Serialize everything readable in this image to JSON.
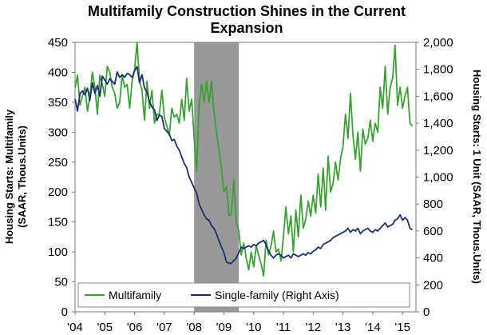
{
  "chart_data": {
    "type": "line",
    "title_lines": [
      "Multifamily Construction Shines in the Current",
      "Expansion"
    ],
    "ylabel_left_lines": [
      "Housing Starts: Multifamily",
      "(SAAR, Thous.Units)"
    ],
    "ylabel_right": "Housing Starts: 1 Unit (SAAR, Thous.Units)",
    "xticks": [
      "'04",
      "'05",
      "'06",
      "'07",
      "'08",
      "'09",
      "'10",
      "'11",
      "'12",
      "'13",
      "'14",
      "'15"
    ],
    "ylim_left": [
      0,
      450
    ],
    "yticks_left": [
      "0",
      "50",
      "100",
      "150",
      "200",
      "250",
      "300",
      "350",
      "400",
      "450"
    ],
    "ylim_right": [
      0,
      2000
    ],
    "yticks_right": [
      "0",
      "200",
      "400",
      "600",
      "800",
      "1,000",
      "1,200",
      "1,400",
      "1,600",
      "1,800",
      "2,000"
    ],
    "recession": {
      "start": 2008.0,
      "end": 2009.5
    },
    "legend_position": "bottom",
    "series": [
      {
        "name": "Multifamily",
        "axis": "left",
        "color": "#3aa035",
        "points": [
          [
            2004.0,
            375
          ],
          [
            2004.083,
            395
          ],
          [
            2004.167,
            345
          ],
          [
            2004.25,
            360
          ],
          [
            2004.333,
            375
          ],
          [
            2004.417,
            335
          ],
          [
            2004.5,
            360
          ],
          [
            2004.583,
            400
          ],
          [
            2004.667,
            375
          ],
          [
            2004.75,
            330
          ],
          [
            2004.833,
            395
          ],
          [
            2004.917,
            380
          ],
          [
            2005.0,
            360
          ],
          [
            2005.083,
            410
          ],
          [
            2005.167,
            400
          ],
          [
            2005.25,
            375
          ],
          [
            2005.333,
            365
          ],
          [
            2005.417,
            340
          ],
          [
            2005.5,
            350
          ],
          [
            2005.583,
            395
          ],
          [
            2005.667,
            375
          ],
          [
            2005.75,
            380
          ],
          [
            2005.833,
            340
          ],
          [
            2005.917,
            385
          ],
          [
            2006.0,
            405
          ],
          [
            2006.083,
            450
          ],
          [
            2006.167,
            385
          ],
          [
            2006.25,
            370
          ],
          [
            2006.333,
            320
          ],
          [
            2006.417,
            385
          ],
          [
            2006.5,
            340
          ],
          [
            2006.583,
            370
          ],
          [
            2006.667,
            315
          ],
          [
            2006.75,
            330
          ],
          [
            2006.833,
            330
          ],
          [
            2006.917,
            370
          ],
          [
            2007.0,
            325
          ],
          [
            2007.083,
            310
          ],
          [
            2007.167,
            295
          ],
          [
            2007.25,
            340
          ],
          [
            2007.333,
            325
          ],
          [
            2007.417,
            330
          ],
          [
            2007.5,
            315
          ],
          [
            2007.583,
            355
          ],
          [
            2007.667,
            320
          ],
          [
            2007.75,
            390
          ],
          [
            2007.833,
            335
          ],
          [
            2007.917,
            355
          ],
          [
            2008.0,
            290
          ],
          [
            2008.083,
            235
          ],
          [
            2008.167,
            345
          ],
          [
            2008.25,
            380
          ],
          [
            2008.333,
            350
          ],
          [
            2008.417,
            385
          ],
          [
            2008.5,
            350
          ],
          [
            2008.583,
            385
          ],
          [
            2008.667,
            335
          ],
          [
            2008.75,
            300
          ],
          [
            2008.833,
            270
          ],
          [
            2008.917,
            240
          ],
          [
            2009.0,
            200
          ],
          [
            2009.083,
            210
          ],
          [
            2009.167,
            160
          ],
          [
            2009.25,
            165
          ],
          [
            2009.333,
            220
          ],
          [
            2009.417,
            150
          ],
          [
            2009.5,
            135
          ],
          [
            2009.583,
            95
          ],
          [
            2009.667,
            115
          ],
          [
            2009.75,
            90
          ],
          [
            2009.833,
            70
          ],
          [
            2009.917,
            100
          ],
          [
            2010.0,
            75
          ],
          [
            2010.083,
            110
          ],
          [
            2010.167,
            95
          ],
          [
            2010.25,
            80
          ],
          [
            2010.333,
            60
          ],
          [
            2010.417,
            120
          ],
          [
            2010.5,
            95
          ],
          [
            2010.583,
            110
          ],
          [
            2010.667,
            135
          ],
          [
            2010.75,
            100
          ],
          [
            2010.833,
            105
          ],
          [
            2010.917,
            85
          ],
          [
            2011.0,
            125
          ],
          [
            2011.083,
            175
          ],
          [
            2011.167,
            130
          ],
          [
            2011.25,
            160
          ],
          [
            2011.333,
            100
          ],
          [
            2011.417,
            170
          ],
          [
            2011.5,
            125
          ],
          [
            2011.583,
            195
          ],
          [
            2011.667,
            140
          ],
          [
            2011.75,
            155
          ],
          [
            2011.833,
            185
          ],
          [
            2011.917,
            160
          ],
          [
            2012.0,
            195
          ],
          [
            2012.083,
            165
          ],
          [
            2012.167,
            230
          ],
          [
            2012.25,
            175
          ],
          [
            2012.333,
            240
          ],
          [
            2012.417,
            170
          ],
          [
            2012.5,
            260
          ],
          [
            2012.583,
            200
          ],
          [
            2012.667,
            215
          ],
          [
            2012.75,
            250
          ],
          [
            2012.833,
            220
          ],
          [
            2012.917,
            255
          ],
          [
            2013.0,
            275
          ],
          [
            2013.083,
            330
          ],
          [
            2013.167,
            290
          ],
          [
            2013.25,
            365
          ],
          [
            2013.333,
            295
          ],
          [
            2013.417,
            255
          ],
          [
            2013.5,
            300
          ],
          [
            2013.583,
            235
          ],
          [
            2013.667,
            305
          ],
          [
            2013.75,
            280
          ],
          [
            2013.833,
            290
          ],
          [
            2013.917,
            320
          ],
          [
            2014.0,
            285
          ],
          [
            2014.083,
            315
          ],
          [
            2014.167,
            300
          ],
          [
            2014.25,
            375
          ],
          [
            2014.333,
            340
          ],
          [
            2014.417,
            410
          ],
          [
            2014.5,
            330
          ],
          [
            2014.583,
            375
          ],
          [
            2014.667,
            390
          ],
          [
            2014.75,
            445
          ],
          [
            2014.833,
            345
          ],
          [
            2014.917,
            375
          ],
          [
            2015.0,
            340
          ],
          [
            2015.083,
            360
          ],
          [
            2015.167,
            375
          ],
          [
            2015.25,
            315
          ],
          [
            2015.333,
            310
          ]
        ]
      },
      {
        "name": "Single-family (Right Axis)",
        "axis": "right",
        "color": "#1c2f6b",
        "points": [
          [
            2004.0,
            1580
          ],
          [
            2004.083,
            1490
          ],
          [
            2004.167,
            1620
          ],
          [
            2004.25,
            1640
          ],
          [
            2004.333,
            1610
          ],
          [
            2004.417,
            1660
          ],
          [
            2004.5,
            1570
          ],
          [
            2004.583,
            1700
          ],
          [
            2004.667,
            1620
          ],
          [
            2004.75,
            1680
          ],
          [
            2004.833,
            1600
          ],
          [
            2004.917,
            1750
          ],
          [
            2005.0,
            1720
          ],
          [
            2005.083,
            1690
          ],
          [
            2005.167,
            1730
          ],
          [
            2005.25,
            1710
          ],
          [
            2005.333,
            1690
          ],
          [
            2005.417,
            1780
          ],
          [
            2005.5,
            1740
          ],
          [
            2005.583,
            1760
          ],
          [
            2005.667,
            1740
          ],
          [
            2005.75,
            1770
          ],
          [
            2005.833,
            1760
          ],
          [
            2005.917,
            1740
          ],
          [
            2006.0,
            1790
          ],
          [
            2006.083,
            1820
          ],
          [
            2006.167,
            1700
          ],
          [
            2006.25,
            1760
          ],
          [
            2006.333,
            1660
          ],
          [
            2006.417,
            1630
          ],
          [
            2006.5,
            1560
          ],
          [
            2006.583,
            1520
          ],
          [
            2006.667,
            1500
          ],
          [
            2006.75,
            1420
          ],
          [
            2006.833,
            1460
          ],
          [
            2006.917,
            1450
          ],
          [
            2007.0,
            1360
          ],
          [
            2007.083,
            1340
          ],
          [
            2007.167,
            1320
          ],
          [
            2007.25,
            1270
          ],
          [
            2007.333,
            1280
          ],
          [
            2007.417,
            1230
          ],
          [
            2007.5,
            1200
          ],
          [
            2007.583,
            1150
          ],
          [
            2007.667,
            1100
          ],
          [
            2007.75,
            1070
          ],
          [
            2007.833,
            1000
          ],
          [
            2007.917,
            960
          ],
          [
            2008.0,
            920
          ],
          [
            2008.083,
            880
          ],
          [
            2008.167,
            800
          ],
          [
            2008.25,
            760
          ],
          [
            2008.333,
            720
          ],
          [
            2008.417,
            690
          ],
          [
            2008.5,
            680
          ],
          [
            2008.583,
            640
          ],
          [
            2008.667,
            620
          ],
          [
            2008.75,
            580
          ],
          [
            2008.833,
            530
          ],
          [
            2008.917,
            480
          ],
          [
            2009.0,
            440
          ],
          [
            2009.083,
            370
          ],
          [
            2009.167,
            360
          ],
          [
            2009.25,
            360
          ],
          [
            2009.333,
            380
          ],
          [
            2009.417,
            400
          ],
          [
            2009.5,
            440
          ],
          [
            2009.583,
            480
          ],
          [
            2009.667,
            470
          ],
          [
            2009.75,
            480
          ],
          [
            2009.833,
            490
          ],
          [
            2009.917,
            480
          ],
          [
            2010.0,
            500
          ],
          [
            2010.083,
            490
          ],
          [
            2010.167,
            510
          ],
          [
            2010.25,
            520
          ],
          [
            2010.333,
            530
          ],
          [
            2010.417,
            500
          ],
          [
            2010.5,
            450
          ],
          [
            2010.583,
            420
          ],
          [
            2010.667,
            400
          ],
          [
            2010.75,
            420
          ],
          [
            2010.833,
            430
          ],
          [
            2010.917,
            420
          ],
          [
            2011.0,
            400
          ],
          [
            2011.083,
            410
          ],
          [
            2011.167,
            420
          ],
          [
            2011.25,
            400
          ],
          [
            2011.333,
            430
          ],
          [
            2011.417,
            420
          ],
          [
            2011.5,
            410
          ],
          [
            2011.583,
            420
          ],
          [
            2011.667,
            430
          ],
          [
            2011.75,
            420
          ],
          [
            2011.833,
            440
          ],
          [
            2011.917,
            430
          ],
          [
            2012.0,
            450
          ],
          [
            2012.083,
            460
          ],
          [
            2012.167,
            480
          ],
          [
            2012.25,
            470
          ],
          [
            2012.333,
            500
          ],
          [
            2012.417,
            510
          ],
          [
            2012.5,
            520
          ],
          [
            2012.583,
            530
          ],
          [
            2012.667,
            550
          ],
          [
            2012.75,
            560
          ],
          [
            2012.833,
            570
          ],
          [
            2012.917,
            580
          ],
          [
            2013.0,
            590
          ],
          [
            2013.083,
            600
          ],
          [
            2013.167,
            620
          ],
          [
            2013.25,
            590
          ],
          [
            2013.333,
            610
          ],
          [
            2013.417,
            600
          ],
          [
            2013.5,
            620
          ],
          [
            2013.583,
            580
          ],
          [
            2013.667,
            600
          ],
          [
            2013.75,
            610
          ],
          [
            2013.833,
            620
          ],
          [
            2013.917,
            600
          ],
          [
            2014.0,
            590
          ],
          [
            2014.083,
            610
          ],
          [
            2014.167,
            600
          ],
          [
            2014.25,
            620
          ],
          [
            2014.333,
            640
          ],
          [
            2014.417,
            660
          ],
          [
            2014.5,
            630
          ],
          [
            2014.583,
            640
          ],
          [
            2014.667,
            650
          ],
          [
            2014.75,
            680
          ],
          [
            2014.833,
            690
          ],
          [
            2014.917,
            720
          ],
          [
            2015.0,
            680
          ],
          [
            2015.083,
            700
          ],
          [
            2015.167,
            680
          ],
          [
            2015.25,
            620
          ],
          [
            2015.333,
            610
          ]
        ]
      }
    ]
  }
}
